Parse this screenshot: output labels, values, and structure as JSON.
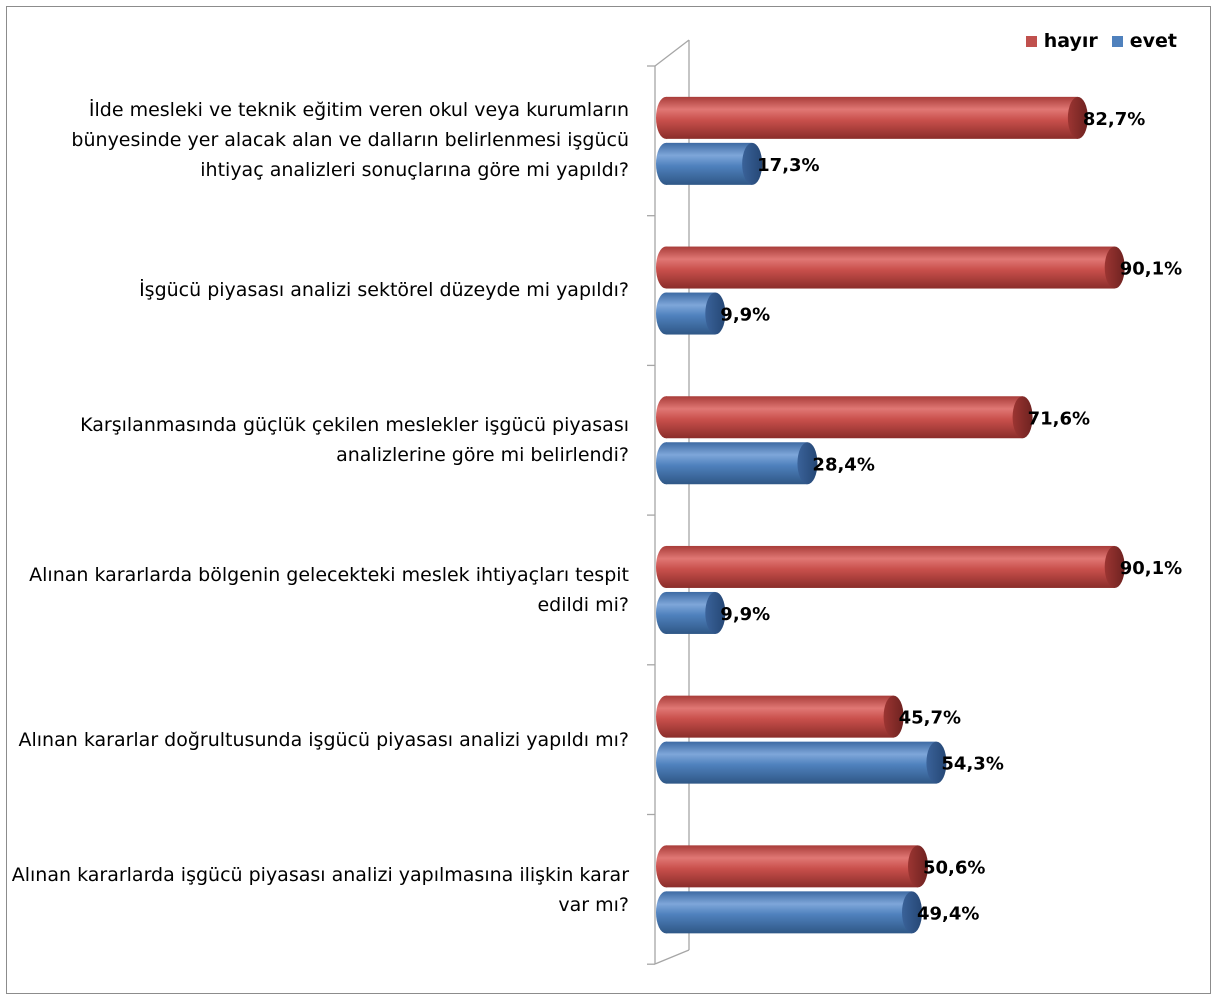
{
  "chart_data": {
    "type": "bar",
    "orientation": "horizontal",
    "categories": [
      "İlde mesleki ve teknik eğitim veren okul veya kurumların bünyesinde yer alacak alan ve dalların belirlenmesi işgücü ihtiyaç analizleri sonuçlarına göre mi yapıldı?",
      "İşgücü piyasası analizi sektörel düzeyde mi yapıldı?",
      "Karşılanmasında güçlük çekilen meslekler işgücü piyasası analizlerine göre mi belirlendi?",
      "Alınan kararlarda bölgenin gelecekteki meslek ihtiyaçları tespit edildi mi?",
      "Alınan kararlar doğrultusunda işgücü piyasası analizi yapıldı mı?",
      "Alınan kararlarda işgücü piyasası analizi yapılmasına ilişkin karar var mı?"
    ],
    "series": [
      {
        "name": "hayır",
        "color": "#c0504d",
        "values": [
          82.7,
          90.1,
          71.6,
          90.1,
          45.7,
          50.6
        ],
        "labels": [
          "82,7%",
          "90,1%",
          "71,6%",
          "90,1%",
          "45,7%",
          "50,6%"
        ]
      },
      {
        "name": "evet",
        "color": "#4f81bd",
        "values": [
          17.3,
          9.9,
          28.4,
          9.9,
          54.3,
          49.4
        ],
        "labels": [
          "17,3%",
          "9,9%",
          "28,4%",
          "9,9%",
          "54,3%",
          "49,4%"
        ]
      }
    ],
    "xlim": [
      0,
      100
    ],
    "grid": false,
    "legend": "top-right"
  }
}
